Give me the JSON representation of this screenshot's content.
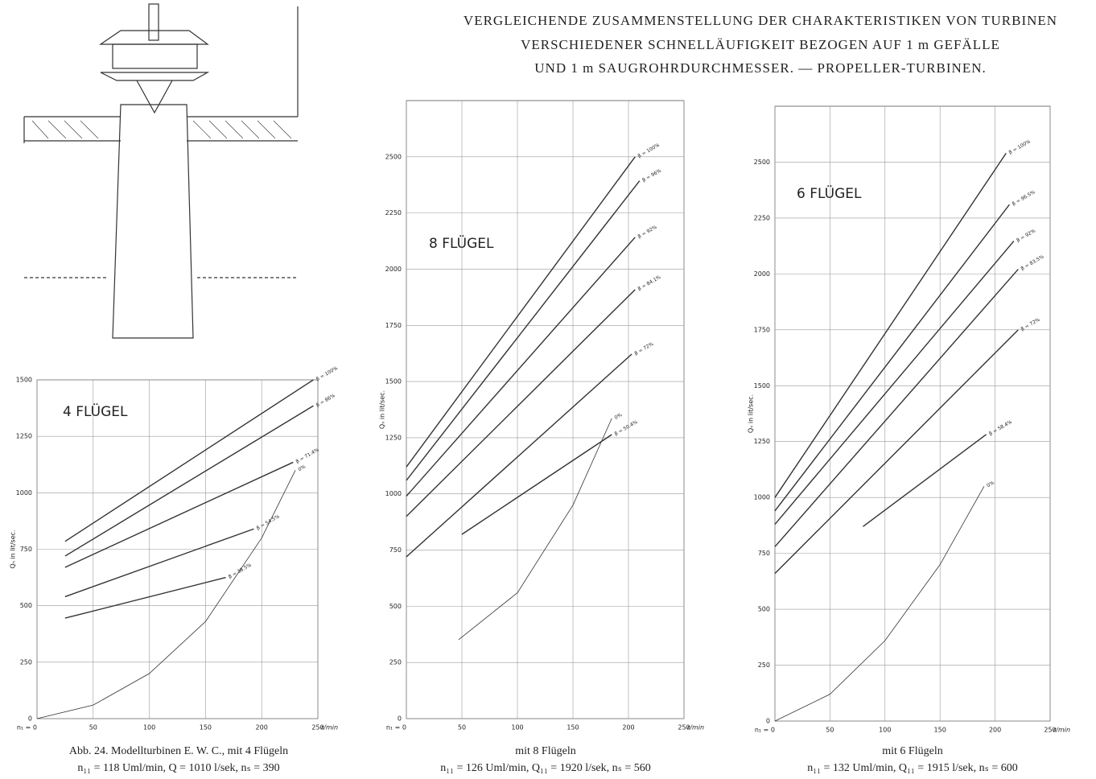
{
  "title_lines": [
    "VERGLEICHENDE ZUSAMMENSTELLUNG DER CHARAKTERISTIKEN VON TURBINEN",
    "VERSCHIEDENER SCHNELLÄUFIGKEIT BEZOGEN AUF 1 m GEFÄLLE",
    "UND 1 m SAUGROHRDURCHMESSER. — PROPELLER-TURBINEN."
  ],
  "chart_data": [
    {
      "type": "line",
      "title": "4 FLÜGEL",
      "ylabel": "Qₙ in lit/sec.",
      "xlabel": "r/min",
      "xlim": [
        0,
        250
      ],
      "ylim": [
        0,
        1500
      ],
      "grid": true,
      "color": "#333333",
      "xticks": [
        {
          "value": 0,
          "label": "n₁ = 0"
        },
        50,
        100,
        150,
        200,
        250
      ],
      "yticks": [
        0,
        250,
        500,
        750,
        1000,
        1250,
        1500
      ],
      "series": [
        {
          "name": "β = 100%",
          "x": [
            25,
            246
          ],
          "values": [
            785,
            1500
          ]
        },
        {
          "name": "β = 86%",
          "x": [
            25,
            246
          ],
          "values": [
            720,
            1385
          ]
        },
        {
          "name": "β = 71.4%",
          "x": [
            25,
            228
          ],
          "values": [
            670,
            1135
          ]
        },
        {
          "name": "β = 54.5%",
          "x": [
            25,
            193
          ],
          "values": [
            540,
            840
          ]
        },
        {
          "name": "β = 38.5%",
          "x": [
            25,
            168
          ],
          "values": [
            445,
            625
          ]
        },
        {
          "name": "0%",
          "x": [
            0,
            50,
            100,
            150,
            200,
            230
          ],
          "values": [
            0,
            60,
            200,
            430,
            800,
            1100
          ]
        }
      ],
      "caption": [
        "Abb. 24. Modellturbinen E. W. C., mit 4 Flügeln",
        "n₁₁ = 118 Uml/min, Q = 1010 l/sek, nₛ = 390"
      ]
    },
    {
      "type": "line",
      "title": "8 FLÜGEL",
      "ylabel": "Qₙ in lit/sec.",
      "xlabel": "r/min",
      "xlim": [
        0,
        250
      ],
      "ylim": [
        0,
        2750
      ],
      "grid": true,
      "color": "#333333",
      "xticks": [
        {
          "value": 0,
          "label": "n₁ = 0"
        },
        50,
        100,
        150,
        200,
        250
      ],
      "yticks": [
        0,
        250,
        500,
        750,
        1000,
        1250,
        1500,
        1750,
        2000,
        2250,
        2500
      ],
      "series": [
        {
          "name": "β = 100%",
          "x": [
            0,
            206
          ],
          "values": [
            1120,
            2500
          ]
        },
        {
          "name": "β = 96%",
          "x": [
            0,
            210
          ],
          "values": [
            1060,
            2393
          ]
        },
        {
          "name": "β = 92%",
          "x": [
            0,
            206
          ],
          "values": [
            990,
            2142
          ]
        },
        {
          "name": "β = 84.1%",
          "x": [
            0,
            206
          ],
          "values": [
            900,
            1909
          ]
        },
        {
          "name": "β = 72%",
          "x": [
            0,
            203
          ],
          "values": [
            720,
            1622
          ]
        },
        {
          "name": "β = 50.4%",
          "x": [
            50,
            185
          ],
          "values": [
            820,
            1264
          ]
        },
        {
          "name": "0%",
          "x": [
            47,
            100,
            150,
            185
          ],
          "values": [
            351,
            560,
            950,
            1336
          ]
        }
      ],
      "caption": [
        "mit 8 Flügeln",
        "n₁₁ = 126 Uml/min, Q₁₁ = 1920 l/sek, nₛ = 560"
      ]
    },
    {
      "type": "line",
      "title": "6 FLÜGEL",
      "ylabel": "Qₙ in lit/sec.",
      "xlabel": "r/min",
      "xlim": [
        0,
        250
      ],
      "ylim": [
        0,
        2750
      ],
      "grid": true,
      "color": "#333333",
      "xticks": [
        {
          "value": 0,
          "label": "n₁ = 0"
        },
        50,
        100,
        150,
        200,
        250
      ],
      "yticks": [
        0,
        250,
        500,
        750,
        1000,
        1250,
        1500,
        1750,
        2000,
        2250,
        2500
      ],
      "series": [
        {
          "name": "β = 100%",
          "x": [
            0,
            210
          ],
          "values": [
            1000,
            2540
          ]
        },
        {
          "name": "β = 96.5%",
          "x": [
            0,
            213
          ],
          "values": [
            940,
            2310
          ]
        },
        {
          "name": "β = 92%",
          "x": [
            0,
            217
          ],
          "values": [
            880,
            2147
          ]
        },
        {
          "name": "β = 83.5%",
          "x": [
            0,
            221
          ],
          "values": [
            780,
            2021
          ]
        },
        {
          "name": "β = 72%",
          "x": [
            0,
            221
          ],
          "values": [
            660,
            1750
          ]
        },
        {
          "name": "β = 58.4%",
          "x": [
            80,
            192
          ],
          "values": [
            870,
            1282
          ]
        },
        {
          "name": "0%",
          "x": [
            0,
            50,
            100,
            150,
            190
          ],
          "values": [
            0,
            120,
            360,
            700,
            1050
          ]
        }
      ],
      "caption": [
        "mit 6 Flügeln",
        "n₁₁ = 132 Uml/min, Q₁₁ = 1915 l/sek, nₛ = 600"
      ]
    }
  ]
}
